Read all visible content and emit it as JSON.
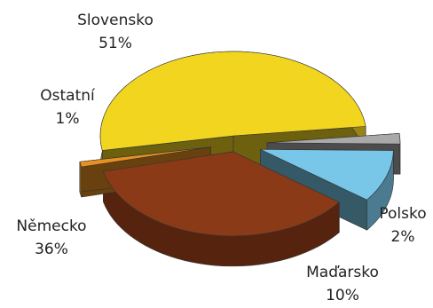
{
  "chart_data": {
    "type": "pie",
    "style": "3d-exploded",
    "title": "",
    "slices": [
      {
        "name": "Slovensko",
        "value": 51,
        "label": "51%",
        "color": "#f2d51f"
      },
      {
        "name": "Polsko",
        "value": 2,
        "label": "2%",
        "color": "#a9a9a9"
      },
      {
        "name": "Maďarsko",
        "value": 10,
        "label": "10%",
        "color": "#78c6e8"
      },
      {
        "name": "Německo",
        "value": 36,
        "label": "36%",
        "color": "#8b3a17"
      },
      {
        "name": "Ostatní",
        "value": 1,
        "label": "1%",
        "color": "#e8901f"
      }
    ],
    "legend": "none"
  }
}
